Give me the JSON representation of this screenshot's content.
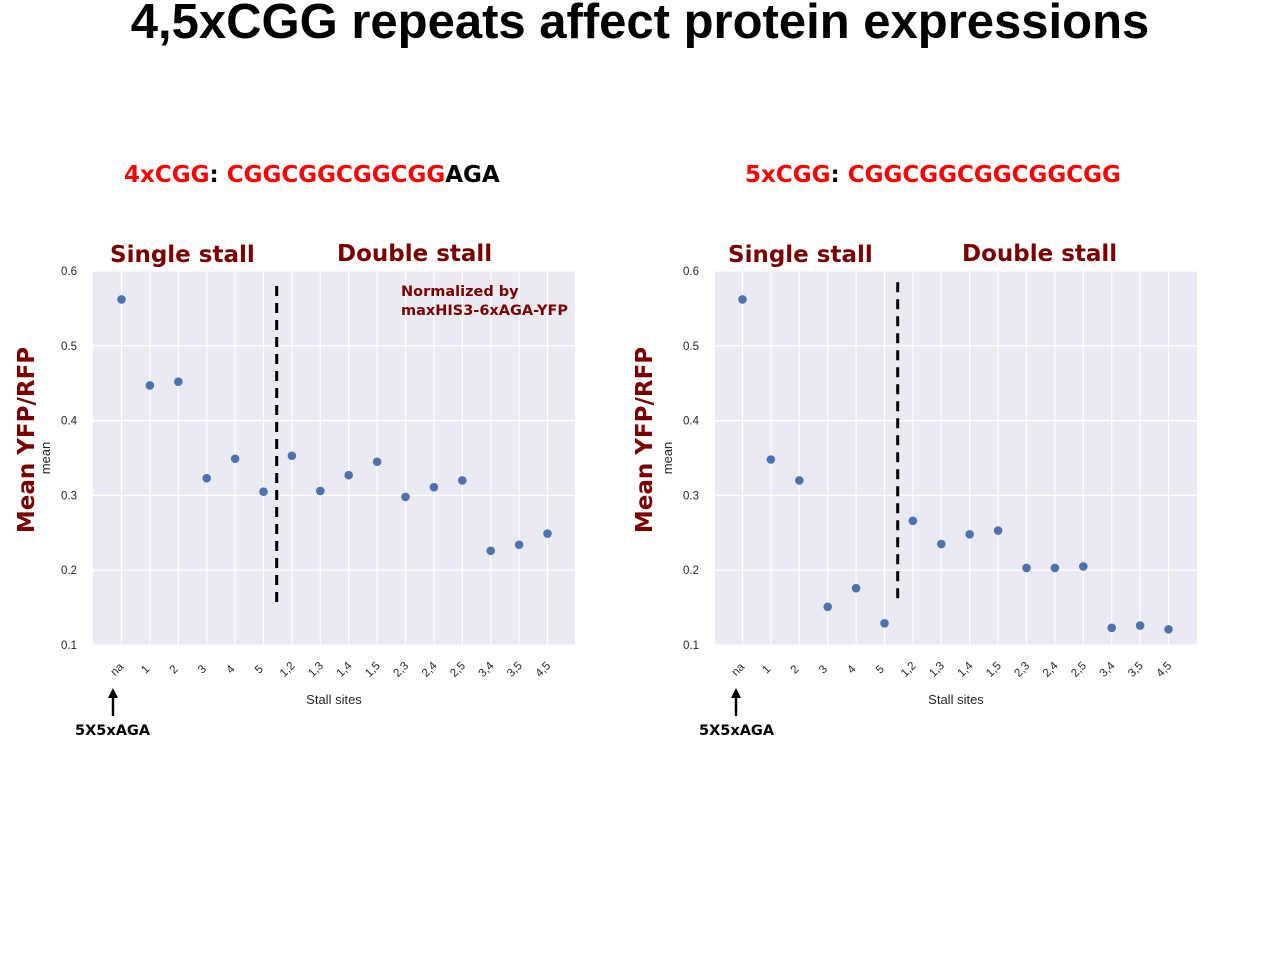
{
  "slide": {
    "title": "4,5xCGG repeats affect protein expressions"
  },
  "panels": [
    {
      "header": {
        "prefix": "4xCGG",
        "colon": ": ",
        "seq_red": "CGGCGGCGGCGG",
        "seq_black": "AGA"
      },
      "annotations": {
        "single_stall": "Single stall",
        "double_stall": "Double stall",
        "big_ylabel": "Mean YFP/RFP",
        "note_line1": "Normalized by",
        "note_line2": "maxHIS3-6xAGA-YFP",
        "reference_label": "5X5xAGA"
      }
    },
    {
      "header": {
        "prefix": "5xCGG",
        "colon": ": ",
        "seq_red": "CGGCGGCGGCGGCGG",
        "seq_black": ""
      },
      "annotations": {
        "single_stall": "Single stall",
        "double_stall": "Double stall",
        "big_ylabel": "Mean YFP/RFP",
        "note_line1": "",
        "note_line2": "",
        "reference_label": "5X5xAGA"
      }
    }
  ],
  "chart_data": [
    {
      "type": "scatter",
      "title": "",
      "xlabel": "Stall sites",
      "ylabel": "mean",
      "categories": [
        "na",
        "1",
        "2",
        "3",
        "4",
        "5",
        "1,2",
        "1,3",
        "1,4",
        "1,5",
        "2,3",
        "2,4",
        "2,5",
        "3,4",
        "3,5",
        "4,5"
      ],
      "values": [
        0.562,
        0.447,
        0.452,
        0.323,
        0.349,
        0.305,
        0.353,
        0.306,
        0.327,
        0.345,
        0.298,
        0.311,
        0.32,
        0.226,
        0.234,
        0.249
      ],
      "ylim": [
        0.1,
        0.6
      ],
      "yticks": [
        "0.1",
        "0.2",
        "0.3",
        "0.4",
        "0.5",
        "0.6"
      ],
      "grid": true,
      "marker_color": "#4c72b0",
      "divider": {
        "between": [
          "5",
          "1,2"
        ],
        "y_range": [
          0.153,
          0.58
        ]
      }
    },
    {
      "type": "scatter",
      "title": "",
      "xlabel": "Stall sites",
      "ylabel": "mean",
      "categories": [
        "na",
        "1",
        "2",
        "3",
        "4",
        "5",
        "1,2",
        "1,3",
        "1,4",
        "1,5",
        "2,3",
        "2,4",
        "2,5",
        "3,4",
        "3,5",
        "4,5"
      ],
      "values": [
        0.562,
        0.348,
        0.32,
        0.151,
        0.176,
        0.129,
        0.266,
        0.235,
        0.248,
        0.253,
        0.203,
        0.203,
        0.205,
        0.123,
        0.126,
        0.121
      ],
      "ylim": [
        0.1,
        0.6
      ],
      "yticks": [
        "0.1",
        "0.2",
        "0.3",
        "0.4",
        "0.5",
        "0.6"
      ],
      "grid": true,
      "marker_color": "#4c72b0",
      "divider": {
        "between": [
          "5",
          "1,2"
        ],
        "y_range": [
          0.159,
          0.585
        ]
      }
    }
  ],
  "colors": {
    "plot_bg": "#eaeaf2",
    "grid": "#ffffff",
    "title_red": "#ff0000",
    "annotation": "#7a0000"
  }
}
